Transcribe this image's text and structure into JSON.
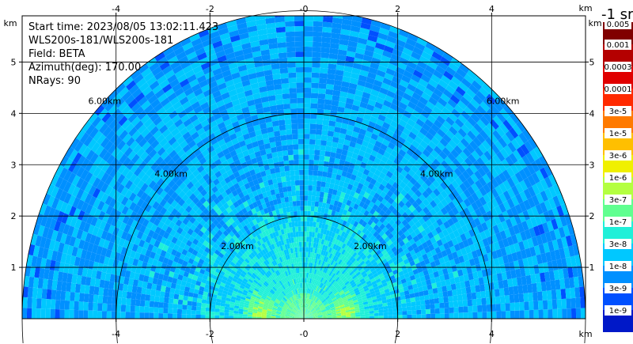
{
  "info": {
    "start_time": "Start time: 2023/08/05 13:02:11.423",
    "instrument": "WLS200s-181/WLS200s-181",
    "field": "Field: BETA",
    "azimuth": "Azimuth(deg): 170.00",
    "nrays": "NRays: 90"
  },
  "colorbar": {
    "title": "-1 sr",
    "labels": [
      "0.005",
      "0.001",
      "0.0003",
      "0.0001",
      "3e-5",
      "1e-5",
      "3e-6",
      "1e-6",
      "3e-7",
      "1e-7",
      "3e-8",
      "1e-8",
      "3e-9",
      "1e-9"
    ],
    "colors": [
      "#800000",
      "#b40000",
      "#e00000",
      "#ff2a00",
      "#ff7a00",
      "#ffbf00",
      "#f0f000",
      "#b4ff40",
      "#60ff90",
      "#20f0d8",
      "#00c8ff",
      "#0090ff",
      "#0050ff",
      "#0018c8"
    ]
  },
  "chart_data": {
    "type": "heatmap",
    "xlabel": "km",
    "ylabel": "km",
    "xlim": [
      -6,
      6
    ],
    "ylim": [
      0,
      5.9
    ],
    "x_ticks": [
      "-4",
      "-2",
      "-0",
      "2",
      "4"
    ],
    "y_ticks": [
      "1",
      "2",
      "3",
      "4",
      "5"
    ],
    "range_rings": [
      {
        "radius_km": 2,
        "label": "2.00km"
      },
      {
        "radius_km": 4,
        "label": "4.00km"
      },
      {
        "radius_km": 6,
        "label": "6.00km"
      }
    ],
    "max_range_km": 6,
    "grid": true
  }
}
